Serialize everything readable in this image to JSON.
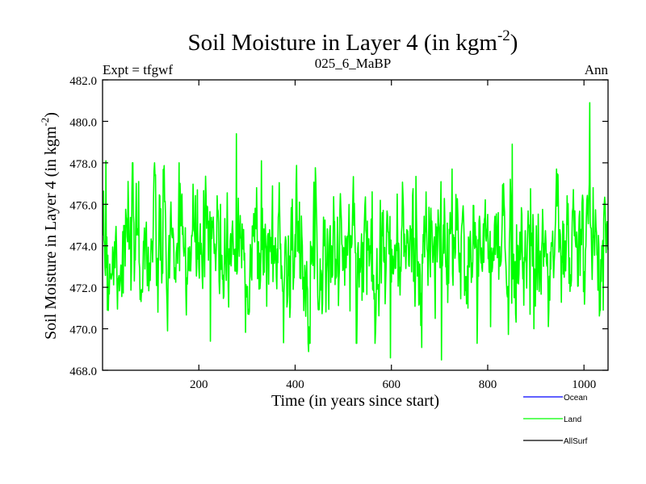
{
  "chart_data": {
    "type": "line",
    "title_main": "Soil Moisture in Layer 4 (in kgm",
    "title_sup": "-2",
    "title_close": ")",
    "left_label": "Expt = tfgwf",
    "center_label": "025_6_MaBP",
    "right_label": "Ann",
    "xlabel": "Time (in years since start)",
    "ylabel_main": "Soil Moisture in Layer 4 (in kgm",
    "ylabel_sup": "-2",
    "ylabel_close": ")",
    "xlim": [
      0,
      1050
    ],
    "ylim": [
      468.0,
      482.0
    ],
    "x_ticks": [
      200,
      400,
      600,
      800,
      1000
    ],
    "x_tick_labels": [
      "200",
      "400",
      "600",
      "800",
      "1000"
    ],
    "y_ticks": [
      468,
      470,
      472,
      474,
      476,
      478,
      480,
      482
    ],
    "y_tick_labels": [
      "468.0",
      "470.0",
      "472.0",
      "474.0",
      "476.0",
      "478.0",
      "480.0",
      "482.0"
    ],
    "grid": false,
    "legend": [
      {
        "name": "Ocean",
        "color": "#0000ff"
      },
      {
        "name": "Land",
        "color": "#00ff00"
      },
      {
        "name": "AllSurf",
        "color": "#000000"
      }
    ],
    "series": [
      {
        "name": "Land",
        "color": "#00ff00",
        "x_start": 1,
        "x_step": 1,
        "noise_seed": 7,
        "mean": 473.8,
        "spread": 1.6,
        "anchors": [
          [
            1,
            474.5
          ],
          [
            7,
            478.1
          ],
          [
            10,
            470.9
          ],
          [
            60,
            472.9
          ],
          [
            75,
            477.1
          ],
          [
            115,
            470.8
          ],
          [
            135,
            469.9
          ],
          [
            160,
            472.8
          ],
          [
            224,
            469.4
          ],
          [
            245,
            476.0
          ],
          [
            278,
            479.4
          ],
          [
            330,
            478.1
          ],
          [
            356,
            474.0
          ],
          [
            425,
            472.1
          ],
          [
            428,
            468.9
          ],
          [
            455,
            472.6
          ],
          [
            505,
            474.3
          ],
          [
            560,
            476.6
          ],
          [
            598,
            468.6
          ],
          [
            610,
            474.1
          ],
          [
            663,
            469.1
          ],
          [
            704,
            468.5
          ],
          [
            726,
            477.7
          ],
          [
            764,
            474.7
          ],
          [
            806,
            470.1
          ],
          [
            851,
            478.9
          ],
          [
            888,
            470.7
          ],
          [
            943,
            477.7
          ],
          [
            972,
            472.6
          ],
          [
            1012,
            480.9
          ],
          [
            1030,
            474.5
          ],
          [
            1040,
            470.9
          ],
          [
            1050,
            473.8
          ]
        ],
        "n_points": 1050
      }
    ]
  }
}
